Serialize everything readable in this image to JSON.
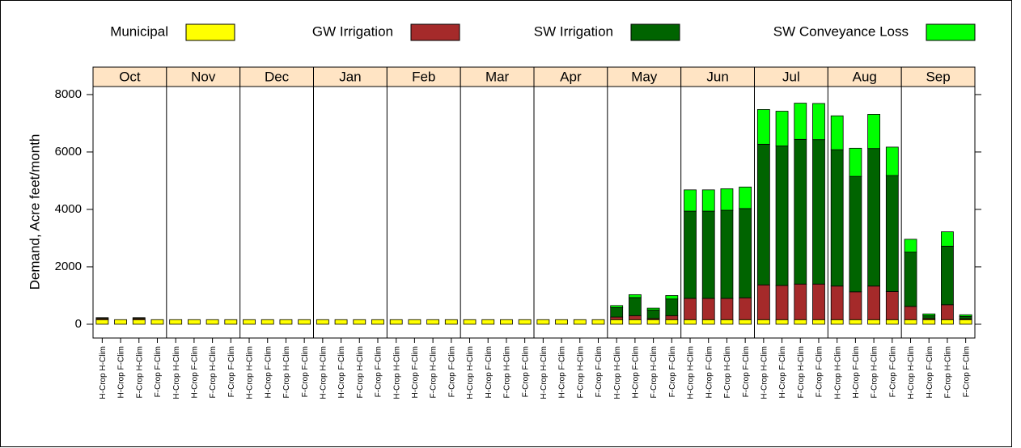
{
  "chart_data": {
    "type": "bar",
    "stacked": true,
    "legend_position": "top",
    "ylabel": "Demand, Acre feet/month",
    "panels": [
      "Oct",
      "Nov",
      "Dec",
      "Jan",
      "Feb",
      "Mar",
      "Apr",
      "May",
      "Jun",
      "Jul",
      "Aug",
      "Sep"
    ],
    "categories": [
      "H-Crop H-Clim",
      "H-Crop F-Clim",
      "F-Crop H-Clim",
      "F-Crop F-Clim"
    ],
    "ylim": [
      -480,
      8280
    ],
    "yticks": [
      0,
      2000,
      4000,
      6000,
      8000
    ],
    "series": [
      {
        "name": "Municipal",
        "color": "#ffff00",
        "values": [
          [
            160,
            160,
            160,
            160
          ],
          [
            160,
            160,
            160,
            160
          ],
          [
            160,
            160,
            160,
            160
          ],
          [
            160,
            160,
            160,
            160
          ],
          [
            160,
            160,
            160,
            160
          ],
          [
            160,
            160,
            160,
            160
          ],
          [
            160,
            160,
            160,
            160
          ],
          [
            160,
            160,
            160,
            160
          ],
          [
            160,
            160,
            160,
            160
          ],
          [
            160,
            160,
            160,
            160
          ],
          [
            160,
            160,
            160,
            160
          ],
          [
            160,
            160,
            160,
            160
          ]
        ]
      },
      {
        "name": "GW Irrigation",
        "color": "#a52a2a",
        "values": [
          [
            40,
            0,
            40,
            0
          ],
          [
            0,
            0,
            0,
            0
          ],
          [
            0,
            0,
            0,
            0
          ],
          [
            0,
            0,
            0,
            0
          ],
          [
            0,
            0,
            0,
            0
          ],
          [
            0,
            0,
            0,
            0
          ],
          [
            0,
            0,
            0,
            0
          ],
          [
            90,
            140,
            40,
            140
          ],
          [
            740,
            740,
            740,
            760
          ],
          [
            1210,
            1190,
            1240,
            1240
          ],
          [
            1170,
            970,
            1170,
            980
          ],
          [
            460,
            40,
            520,
            30
          ]
        ]
      },
      {
        "name": "SW Irrigation",
        "color": "#006400",
        "values": [
          [
            30,
            0,
            30,
            0
          ],
          [
            0,
            0,
            0,
            0
          ],
          [
            0,
            0,
            0,
            0
          ],
          [
            0,
            0,
            0,
            0
          ],
          [
            0,
            0,
            0,
            0
          ],
          [
            0,
            0,
            0,
            0
          ],
          [
            0,
            0,
            0,
            0
          ],
          [
            330,
            630,
            300,
            580
          ],
          [
            3040,
            3040,
            3070,
            3110
          ],
          [
            4900,
            4860,
            5040,
            5030
          ],
          [
            4750,
            4020,
            4790,
            4040
          ],
          [
            1890,
            100,
            2040,
            80
          ]
        ]
      },
      {
        "name": "SW Conveyance Loss",
        "color": "#00ff00",
        "values": [
          [
            0,
            0,
            0,
            0
          ],
          [
            0,
            0,
            0,
            0
          ],
          [
            0,
            0,
            0,
            0
          ],
          [
            0,
            0,
            0,
            0
          ],
          [
            0,
            0,
            0,
            0
          ],
          [
            0,
            0,
            0,
            0
          ],
          [
            0,
            0,
            0,
            0
          ],
          [
            70,
            100,
            60,
            120
          ],
          [
            740,
            740,
            750,
            750
          ],
          [
            1210,
            1210,
            1260,
            1260
          ],
          [
            1180,
            980,
            1190,
            990
          ],
          [
            450,
            60,
            500,
            60
          ]
        ]
      }
    ]
  }
}
